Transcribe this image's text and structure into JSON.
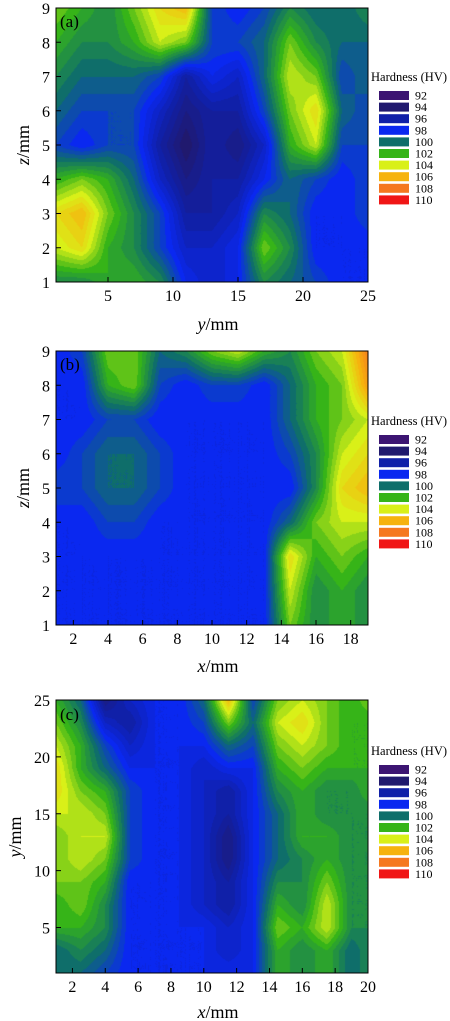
{
  "chart_data": [
    {
      "type": "heatmap",
      "panel_label": "(a)",
      "xlabel_var": "y",
      "xlabel_unit": "/mm",
      "ylabel_var": "z",
      "ylabel_unit": "/mm",
      "xlim": [
        1,
        25
      ],
      "ylim": [
        1,
        9
      ],
      "xticks": [
        5,
        10,
        15,
        20,
        25
      ],
      "yticks": [
        1,
        2,
        3,
        4,
        5,
        6,
        7,
        8,
        9
      ],
      "grid_x": [
        1,
        3,
        5,
        7,
        9,
        11,
        13,
        15,
        17,
        19,
        21,
        23,
        25
      ],
      "grid_y": [
        1,
        2,
        3,
        4,
        5,
        6,
        7,
        8,
        9
      ],
      "values": [
        [
          101,
          101,
          102,
          102,
          101,
          98,
          97,
          98,
          101,
          100,
          99,
          98,
          98
        ],
        [
          104,
          105,
          102,
          101,
          99,
          97,
          97,
          98,
          103,
          101,
          98,
          98,
          98
        ],
        [
          105,
          106,
          103,
          101,
          99,
          96,
          96,
          97,
          101,
          100,
          98,
          98,
          99
        ],
        [
          102,
          103,
          102,
          100,
          97,
          95,
          96,
          96,
          98,
          100,
          99,
          98,
          99
        ],
        [
          99,
          98,
          99,
          99,
          96,
          94,
          96,
          95,
          97,
          102,
          104,
          99,
          99
        ],
        [
          100,
          99,
          99,
          99,
          97,
          95,
          96,
          96,
          99,
          103,
          105,
          100,
          99
        ],
        [
          101,
          100,
          100,
          100,
          99,
          96,
          98,
          97,
          100,
          104,
          103,
          99,
          100
        ],
        [
          102,
          101,
          101,
          102,
          104,
          103,
          99,
          99,
          100,
          103,
          101,
          100,
          100
        ],
        [
          103,
          102,
          101,
          103,
          105,
          106,
          99,
          98,
          99,
          101,
          100,
          100,
          101
        ]
      ],
      "legend_title": "Hardness (HV)",
      "legend_levels": [
        "92",
        "94",
        "96",
        "98",
        "100",
        "102",
        "104",
        "106",
        "108",
        "110"
      ]
    },
    {
      "type": "heatmap",
      "panel_label": "(b)",
      "xlabel_var": "x",
      "xlabel_unit": "/mm",
      "ylabel_var": "z",
      "ylabel_unit": "/mm",
      "xlim": [
        1,
        19
      ],
      "ylim": [
        1,
        9
      ],
      "xticks": [
        2,
        4,
        6,
        8,
        10,
        12,
        14,
        16,
        18
      ],
      "yticks": [
        1,
        2,
        3,
        4,
        5,
        6,
        7,
        8,
        9
      ],
      "grid_x": [
        1,
        2.5,
        4,
        5.5,
        7,
        8.5,
        10,
        11.5,
        13,
        14.5,
        16,
        17.5,
        19
      ],
      "grid_y": [
        1,
        2,
        3,
        4,
        5,
        6,
        7,
        8,
        9
      ],
      "values": [
        [
          98,
          98,
          98,
          98,
          98,
          98,
          98,
          98,
          98,
          103,
          101,
          102,
          101
        ],
        [
          98,
          98,
          98,
          98,
          98,
          98,
          98,
          98,
          98,
          104,
          101,
          102,
          101
        ],
        [
          98,
          98,
          98,
          98,
          98,
          98,
          98,
          98,
          98,
          105,
          102,
          103,
          102
        ],
        [
          98,
          98,
          99,
          99,
          98,
          98,
          98,
          98,
          98,
          100,
          103,
          104,
          104
        ],
        [
          99,
          99,
          100,
          100,
          99,
          98,
          98,
          98,
          98,
          98,
          101,
          105,
          106
        ],
        [
          98,
          99,
          100,
          100,
          99,
          98,
          98,
          98,
          98,
          99,
          101,
          104,
          105
        ],
        [
          98,
          98,
          99,
          99,
          98,
          98,
          98,
          98,
          98,
          100,
          102,
          103,
          104
        ],
        [
          98,
          98,
          102,
          103,
          99,
          98,
          99,
          99,
          98,
          100,
          102,
          103,
          107
        ],
        [
          98,
          99,
          103,
          103,
          100,
          101,
          103,
          104,
          102,
          101,
          103,
          104,
          108
        ]
      ],
      "legend_title": "Hardness (HV)",
      "legend_levels": [
        "92",
        "94",
        "96",
        "98",
        "100",
        "102",
        "104",
        "106",
        "108",
        "110"
      ]
    },
    {
      "type": "heatmap",
      "panel_label": "(c)",
      "xlabel_var": "x",
      "xlabel_unit": "/mm",
      "ylabel_var": "y",
      "ylabel_unit": "/mm",
      "xlim": [
        1,
        20
      ],
      "ylim": [
        1,
        25
      ],
      "xticks": [
        2,
        4,
        6,
        8,
        10,
        12,
        14,
        16,
        18,
        20
      ],
      "yticks": [
        5,
        10,
        15,
        20,
        25
      ],
      "grid_x": [
        1,
        2.5,
        4,
        5.5,
        7,
        8.5,
        10,
        11.5,
        13,
        14.5,
        16,
        17.5,
        19,
        20
      ],
      "grid_y": [
        1,
        3,
        5,
        7,
        9,
        11,
        13,
        15,
        17,
        19,
        21,
        23,
        25
      ],
      "values": [
        [
          100,
          100,
          99,
          98,
          98,
          98,
          98,
          98,
          98,
          102,
          101,
          102,
          100,
          101
        ],
        [
          100,
          101,
          100,
          98,
          98,
          98,
          98,
          97,
          98,
          102,
          101,
          102,
          100,
          101
        ],
        [
          102,
          102,
          101,
          98,
          98,
          98,
          98,
          97,
          98,
          103,
          102,
          104,
          101,
          101
        ],
        [
          102,
          103,
          101,
          98,
          98,
          98,
          97,
          96,
          98,
          102,
          101,
          104,
          101,
          101
        ],
        [
          103,
          103,
          102,
          98,
          98,
          98,
          97,
          96,
          98,
          101,
          101,
          103,
          101,
          101
        ],
        [
          103,
          104,
          103,
          99,
          98,
          98,
          97,
          95,
          98,
          100,
          101,
          102,
          101,
          101
        ],
        [
          103,
          104,
          104,
          99,
          98,
          98,
          97,
          95,
          98,
          100,
          102,
          102,
          101,
          101
        ],
        [
          104,
          104,
          103,
          99,
          98,
          98,
          97,
          96,
          98,
          100,
          102,
          101,
          101,
          101
        ],
        [
          105,
          103,
          102,
          99,
          98,
          98,
          97,
          96,
          98,
          101,
          102,
          101,
          101,
          102
        ],
        [
          105,
          102,
          100,
          98,
          98,
          98,
          97,
          98,
          98,
          102,
          103,
          102,
          102,
          102
        ],
        [
          104,
          102,
          99,
          97,
          98,
          98,
          98,
          100,
          99,
          103,
          104,
          103,
          102,
          102
        ],
        [
          103,
          101,
          97,
          96,
          98,
          98,
          99,
          103,
          100,
          104,
          105,
          103,
          102,
          102
        ],
        [
          102,
          100,
          95,
          97,
          98,
          98,
          100,
          106,
          99,
          103,
          104,
          103,
          102,
          103
        ]
      ],
      "legend_title": "Hardness (HV)",
      "legend_levels": [
        "92",
        "94",
        "96",
        "98",
        "100",
        "102",
        "104",
        "106",
        "108",
        "110"
      ]
    }
  ],
  "palette": {
    "92": "#3c1472",
    "94": "#20196e",
    "96": "#1020a8",
    "98": "#0a28f0",
    "100": "#0f6e6a",
    "102": "#36b418",
    "104": "#d9f018",
    "106": "#f6b30e",
    "108": "#f5781f",
    "110": "#f01616"
  }
}
